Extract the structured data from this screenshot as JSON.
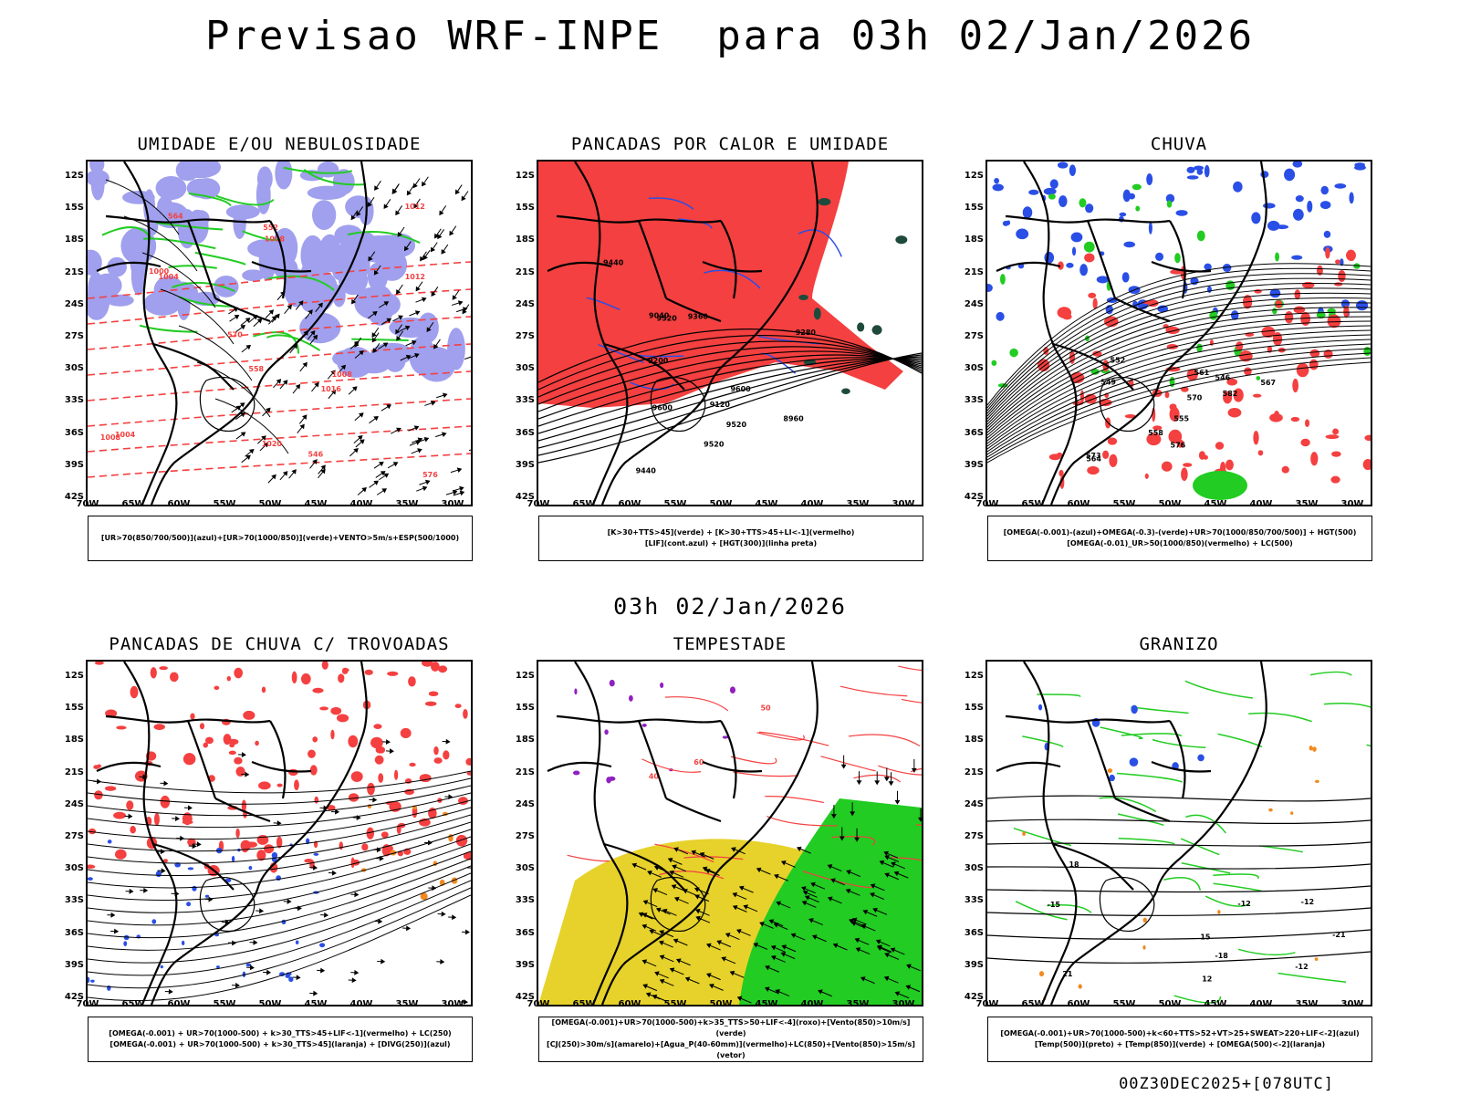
{
  "title": "Previsao WRF-INPE  para 03h 02/Jan/2026",
  "middle_title": "03h 02/Jan/2026",
  "footer": "00Z30DEC2025+[078UTC]",
  "lat_labels": [
    "12S",
    "15S",
    "18S",
    "21S",
    "24S",
    "27S",
    "30S",
    "33S",
    "36S",
    "39S",
    "42S"
  ],
  "lon_labels": [
    "70W",
    "65W",
    "60W",
    "55W",
    "50W",
    "45W",
    "40W",
    "35W",
    "30W"
  ],
  "panels": [
    {
      "id": "umidade",
      "title": "UMIDADE E/OU NEBULOSIDADE",
      "legend": [
        "[UR>70(850/700/500)](azul)+[UR>70(1000/850)](verde)+VENTO>5m/s+ESP(500/1000)"
      ],
      "contour_labels": [
        "1012",
        "1008",
        "1008",
        "1016",
        "1012",
        "1008",
        "1004",
        "1004",
        "1000",
        "1020",
        "576",
        "570",
        "564",
        "558",
        "552",
        "546"
      ]
    },
    {
      "id": "pancadas",
      "title": "PANCADAS POR CALOR E UMIDADE",
      "legend": [
        "[K>30+TTS>45](verde) + [K>30+TTS>45+LI<-1](vermelho)",
        "[LIF](cont.azul) + [HGT(300)](linha preta)"
      ],
      "contour_labels": [
        "9600",
        "9520",
        "9600",
        "9520",
        "9520",
        "9440",
        "9360",
        "9280",
        "9200",
        "9120",
        "9040",
        "8960",
        "9440"
      ]
    },
    {
      "id": "chuva",
      "title": "CHUVA",
      "legend": [
        "[OMEGA(-0.001)-(azul)+OMEGA(-0.3)-(verde)+UR>70(1000/850/700/500)] + HGT(500)",
        "[OMEGA(-0.01)_UR>50(1000/850)(vermelho) + LC(500)"
      ],
      "contour_labels": [
        "582",
        "576",
        "573",
        "570",
        "567",
        "564",
        "561",
        "558",
        "555",
        "552",
        "549",
        "546"
      ]
    },
    {
      "id": "trovoadas",
      "title": "PANCADAS DE CHUVA C/ TROVOADAS",
      "legend": [
        "[OMEGA(-0.001) + UR>70(1000-500) + k>30_TTS>45+LIF<-1](vermelho) + LC(250)",
        "[OMEGA(-0.001) + UR>70(1000-500) + k>30_TTS>45](laranja) + [DIVG(250)](azul)"
      ],
      "contour_labels": []
    },
    {
      "id": "tempestade",
      "title": "TEMPESTADE",
      "legend": [
        "[OMEGA(-0.001)+UR>70(1000-500)+k>35_TTS>50+LIF<-4](roxo)+[Vento(850)>10m/s](verde)",
        "[CJ(250)>30m/s](amarelo)+[Agua_P(40-60mm)](vermelho)+LC(850)+[Vento(850)>15m/s](vetor)"
      ],
      "contour_labels": [
        "40",
        "50",
        "60"
      ]
    },
    {
      "id": "granizo",
      "title": "GRANIZO",
      "legend": [
        "[OMEGA(-0.001)+UR>70(1000-500)+k<60+TTS>52+VT>25+SWEAT>220+LIF<-2](azul)",
        "[Temp(500)](preto) + [Temp(850)](verde) + [OMEGA(500)<-2](laranja)"
      ],
      "contour_labels": [
        "-12",
        "-12",
        "-12",
        "12",
        "15",
        "18",
        "21",
        "-15",
        "-18",
        "-21"
      ]
    }
  ],
  "colors": {
    "red": "#f44040",
    "blue": "#2a4fe6",
    "green": "#22cc22",
    "lavender": "#a0a0ee",
    "yellow": "#e6d22a",
    "orange": "#f08a20",
    "purple": "#9020c0",
    "darkgreen": "#1e4a3c"
  }
}
